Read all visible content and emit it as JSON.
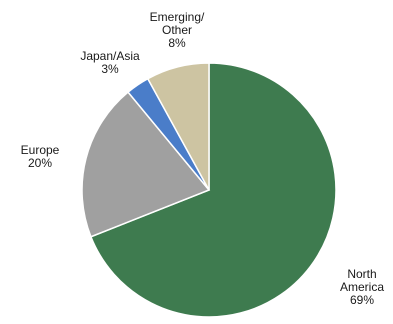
{
  "chart_data": {
    "type": "pie",
    "slices": [
      {
        "label": [
          "North",
          "America"
        ],
        "value_label": "69%",
        "value": 69,
        "color": "#3e7b4f"
      },
      {
        "label": [
          "Europe"
        ],
        "value_label": "20%",
        "value": 20,
        "color": "#a0a0a0"
      },
      {
        "label": [
          "Japan/Asia"
        ],
        "value_label": "3%",
        "value": 3,
        "color": "#4a7dc9"
      },
      {
        "label": [
          "Emerging/",
          "Other"
        ],
        "value_label": "8%",
        "value": 8,
        "color": "#cdc4a2"
      }
    ],
    "start": "12 o'clock",
    "direction": "clockwise",
    "slice_border_color": "#ffffff",
    "legend": "none",
    "data_labels": "outside"
  }
}
